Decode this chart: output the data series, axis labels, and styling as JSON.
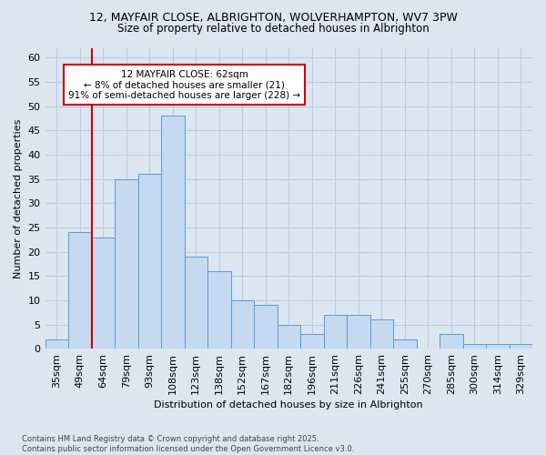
{
  "title_line1": "12, MAYFAIR CLOSE, ALBRIGHTON, WOLVERHAMPTON, WV7 3PW",
  "title_line2": "Size of property relative to detached houses in Albrighton",
  "xlabel": "Distribution of detached houses by size in Albrighton",
  "ylabel": "Number of detached properties",
  "categories": [
    "35sqm",
    "49sqm",
    "64sqm",
    "79sqm",
    "93sqm",
    "108sqm",
    "123sqm",
    "138sqm",
    "152sqm",
    "167sqm",
    "182sqm",
    "196sqm",
    "211sqm",
    "226sqm",
    "241sqm",
    "255sqm",
    "270sqm",
    "285sqm",
    "300sqm",
    "314sqm",
    "329sqm"
  ],
  "values": [
    2,
    24,
    23,
    35,
    36,
    48,
    19,
    16,
    10,
    9,
    5,
    3,
    7,
    7,
    6,
    2,
    0,
    3,
    1,
    1,
    1
  ],
  "bar_color": "#c5d9f0",
  "bar_edge_color": "#5b9bd5",
  "background_color": "#dce6f1",
  "plot_bg_color": "#dce6f1",
  "grid_color": "#b8cce4",
  "annotation_text": "12 MAYFAIR CLOSE: 62sqm\n← 8% of detached houses are smaller (21)\n91% of semi-detached houses are larger (228) →",
  "annotation_box_color": "#ffffff",
  "annotation_box_edge": "#cc0000",
  "vline_color": "#cc0000",
  "vline_position": 1.5,
  "ylim": [
    0,
    62
  ],
  "yticks": [
    0,
    5,
    10,
    15,
    20,
    25,
    30,
    35,
    40,
    45,
    50,
    55,
    60
  ],
  "footer": "Contains HM Land Registry data © Crown copyright and database right 2025.\nContains public sector information licensed under the Open Government Licence v3.0."
}
